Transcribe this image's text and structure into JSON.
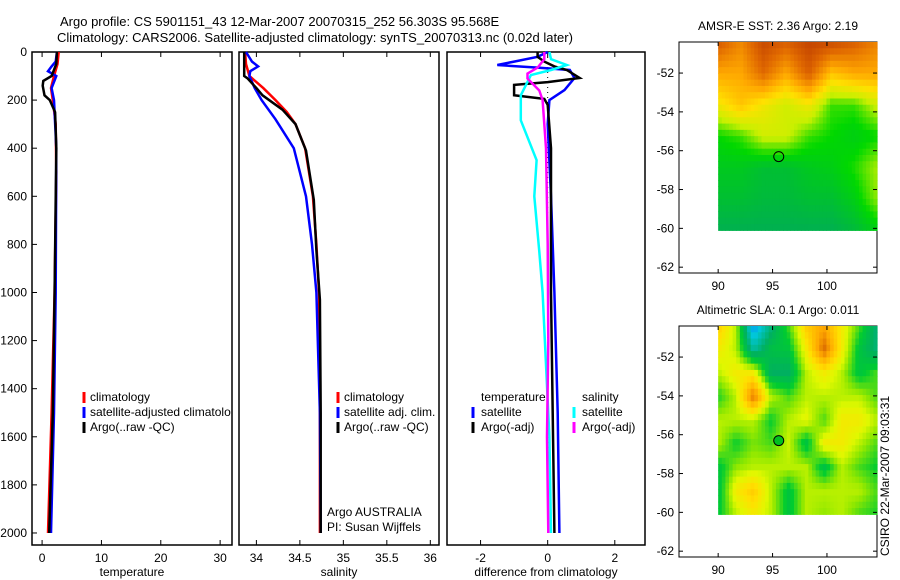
{
  "figure": {
    "title_line1": "Argo profile: CS 5901151_43 12-Mar-2007 20070315_252 56.303S 95.568E",
    "title_line2": "Climatology: CARS2006. Satellite-adjusted climatology: synTS_20070313.nc (0.02d later)",
    "footer_vertical": "CSIRO 22-Mar-2007 09:03:31",
    "credit_line1": "Argo AUSTRALIA",
    "credit_line2": "PI: Susan Wijffels"
  },
  "colors": {
    "red": "#ff0000",
    "blue": "#0000ff",
    "black": "#000000",
    "cyan": "#00ffff",
    "magenta": "#ff00ff"
  },
  "chart_data": [
    {
      "type": "line",
      "id": "temperature",
      "xlabel": "temperature",
      "xlim": [
        -1.7,
        32
      ],
      "ylim": [
        0,
        2050
      ],
      "y_reversed": true,
      "xticks": [
        0,
        10,
        20,
        30
      ],
      "xtick_labels": [
        "0",
        "10",
        "20",
        "30"
      ],
      "yticks": [
        0,
        200,
        400,
        600,
        800,
        1000,
        1200,
        1400,
        1600,
        1800,
        2000
      ],
      "ytick_labels": [
        "0",
        "200",
        "400",
        "600",
        "800",
        "1000",
        "1200",
        "1400",
        "1600",
        "1800",
        "2000"
      ],
      "legend": [
        "climatology",
        "satellite-adjusted climatolo"
      ],
      "legend_items": [
        {
          "label": "climatology",
          "color": "#ff0000"
        },
        {
          "label": "satellite-adjusted climatolo",
          "color": "#0000ff"
        },
        {
          "label": "Argo(..raw -QC)",
          "color": "#000000"
        }
      ],
      "series": [
        {
          "name": "climatology",
          "color": "#ff0000",
          "depth": [
            0,
            50,
            100,
            150,
            200,
            300,
            500,
            1000,
            1500,
            2000
          ],
          "values": [
            2.8,
            2.6,
            2.0,
            1.5,
            1.8,
            2.3,
            2.4,
            2.1,
            1.6,
            1.0
          ]
        },
        {
          "name": "satellite-adjusted climatology",
          "color": "#0000ff",
          "depth": [
            0,
            40,
            60,
            80,
            100,
            150,
            200,
            400,
            1000,
            1500,
            2000
          ],
          "values": [
            2.5,
            2.3,
            1.6,
            1.0,
            2.4,
            1.6,
            2.0,
            2.4,
            2.3,
            2.0,
            1.5
          ]
        },
        {
          "name": "Argo(..raw -QC)",
          "color": "#000000",
          "depth": [
            0,
            50,
            100,
            120,
            140,
            180,
            200,
            250,
            400,
            1000,
            1500,
            2000
          ],
          "values": [
            2.5,
            2.4,
            1.6,
            0.2,
            0.1,
            0.4,
            1.3,
            2.2,
            2.4,
            2.1,
            1.8,
            1.2
          ]
        }
      ]
    },
    {
      "type": "line",
      "id": "salinity",
      "xlabel": "salinity",
      "xlim": [
        33.8,
        36.1
      ],
      "ylim": [
        0,
        2050
      ],
      "y_reversed": true,
      "xticks": [
        34,
        34.5,
        35,
        35.5,
        36
      ],
      "xtick_labels": [
        "34",
        "34.5",
        "35",
        "35.5",
        "36"
      ],
      "legend_items": [
        {
          "label": "climatology",
          "color": "#ff0000"
        },
        {
          "label": "satellite adj. clim.",
          "color": "#0000ff"
        },
        {
          "label": "Argo(..raw -QC)",
          "color": "#000000"
        }
      ],
      "series": [
        {
          "name": "climatology",
          "color": "#ff0000",
          "depth": [
            0,
            50,
            100,
            150,
            200,
            250,
            300,
            400,
            600,
            800,
            1000,
            1500,
            2000
          ],
          "values": [
            33.87,
            33.88,
            33.92,
            34.08,
            34.22,
            34.35,
            34.45,
            34.56,
            34.65,
            34.69,
            34.72,
            34.73,
            34.73
          ]
        },
        {
          "name": "satellite adj. clim.",
          "color": "#0000ff",
          "depth": [
            0,
            40,
            60,
            80,
            100,
            150,
            200,
            280,
            400,
            600,
            800,
            1000,
            1500,
            2000
          ],
          "values": [
            33.88,
            33.95,
            34.02,
            33.93,
            33.92,
            33.98,
            34.06,
            34.22,
            34.43,
            34.57,
            34.64,
            34.69,
            34.73,
            34.74
          ]
        },
        {
          "name": "Argo(..raw -QC)",
          "color": "#000000",
          "depth": [
            0,
            60,
            100,
            110,
            150,
            180,
            240,
            300,
            410,
            615,
            825,
            1030,
            1500,
            2000
          ],
          "values": [
            33.86,
            33.86,
            33.86,
            33.9,
            34.0,
            34.07,
            34.3,
            34.45,
            34.57,
            34.66,
            34.69,
            34.73,
            34.74,
            34.74
          ]
        }
      ]
    },
    {
      "type": "line",
      "id": "difference",
      "xlabel": "difference from climatology",
      "xlim": [
        -3.0,
        2.9
      ],
      "ylim": [
        0,
        2050
      ],
      "y_reversed": true,
      "xticks": [
        -2,
        0,
        2
      ],
      "xtick_labels": [
        "-2",
        "0",
        "2"
      ],
      "legend_headers": [
        "temperature",
        "salinity"
      ],
      "legend_items": [
        {
          "label": "satellite",
          "color": "#0000ff",
          "group": "temperature"
        },
        {
          "label": "Argo(-adj)",
          "color": "#000000",
          "group": "temperature"
        },
        {
          "label": "satellite",
          "color": "#00ffff",
          "group": "salinity"
        },
        {
          "label": "Argo(-adj)",
          "color": "#ff00ff",
          "group": "salinity"
        }
      ],
      "series": [
        {
          "name": "temperature satellite",
          "color": "#0000ff",
          "depth": [
            0,
            20,
            40,
            54,
            65,
            75,
            108,
            158,
            200,
            300,
            600,
            1000,
            1500,
            2000
          ],
          "values": [
            0.0,
            -0.3,
            -1.0,
            -1.5,
            -0.3,
            0.66,
            0.8,
            0.5,
            0.05,
            0.0,
            0.1,
            0.2,
            0.3,
            0.35
          ]
        },
        {
          "name": "temperature Argo(-adj)",
          "color": "#000000",
          "depth": [
            0,
            20,
            40,
            60,
            75,
            108,
            125,
            137,
            180,
            195,
            220,
            400,
            1000,
            1500,
            2000
          ],
          "values": [
            -0.3,
            -0.3,
            -0.1,
            0.2,
            0.57,
            0.95,
            0.0,
            -1.0,
            -1.0,
            -0.1,
            0.0,
            0.1,
            0.1,
            0.15,
            0.2
          ]
        },
        {
          "name": "salinity satellite",
          "color": "#00ffff",
          "depth": [
            0,
            30,
            54,
            75,
            96,
            180,
            284,
            450,
            600,
            830,
            1000,
            1300,
            1600,
            2000
          ],
          "values": [
            0.05,
            0.1,
            0.57,
            0.1,
            -0.5,
            -0.8,
            -0.8,
            -0.33,
            -0.4,
            -0.25,
            -0.15,
            -0.05,
            0.05,
            0.1
          ]
        },
        {
          "name": "salinity Argo(-adj)",
          "color": "#ff00ff",
          "depth": [
            0,
            30,
            65,
            90,
            110,
            160,
            200,
            400,
            800,
            1200,
            1600,
            2000
          ],
          "values": [
            -0.1,
            -0.1,
            -0.3,
            -0.6,
            -0.6,
            -0.25,
            -0.15,
            -0.05,
            0.0,
            0.02,
            -0.02,
            0.02
          ]
        }
      ]
    },
    {
      "type": "heatmap",
      "id": "sst-map",
      "title": "AMSR-E SST: 2.36 Argo: 2.19",
      "xlim": [
        86.4,
        104.6
      ],
      "ylim": [
        -62.3,
        -50.4
      ],
      "xticks": [
        90,
        95,
        100
      ],
      "xtick_labels": [
        "90",
        "95",
        "100"
      ],
      "yticks": [
        -52,
        -54,
        -56,
        -58,
        -60,
        -62
      ],
      "ytick_labels": [
        "-52",
        "-54",
        "-56",
        "-58",
        "-60",
        "-62"
      ],
      "data_lon_range": [
        90,
        104.6
      ],
      "data_lat_range": [
        -60.1,
        -50.4
      ],
      "float_position": {
        "lon": 95.568,
        "lat": -56.303
      },
      "colorscale": [
        [
          2.0,
          "#00b050"
        ],
        [
          2.8,
          "#00d800"
        ],
        [
          3.5,
          "#c8f000"
        ],
        [
          4.2,
          "#ffe000"
        ],
        [
          5.0,
          "#ffa800"
        ],
        [
          6.0,
          "#e06800"
        ],
        [
          6.8,
          "#c04000"
        ]
      ],
      "grid_rows_top_to_bottom": [
        [
          6.3,
          5.5,
          6.6,
          6.2,
          6.7,
          6.6,
          6.2,
          5.6
        ],
        [
          5.0,
          5.0,
          6.0,
          5.0,
          6.2,
          4.6,
          5.0,
          5.0
        ],
        [
          4.0,
          4.6,
          4.0,
          3.6,
          4.0,
          3.0,
          3.0,
          3.6
        ],
        [
          2.8,
          3.0,
          3.6,
          3.6,
          3.0,
          2.8,
          2.6,
          2.8
        ],
        [
          2.5,
          2.5,
          2.3,
          2.3,
          2.5,
          2.6,
          2.9,
          3.4
        ],
        [
          2.3,
          2.3,
          2.2,
          2.2,
          2.3,
          2.3,
          2.6,
          3.3
        ],
        [
          2.0,
          2.0,
          2.0,
          2.0,
          2.0,
          2.0,
          2.2,
          2.6
        ]
      ]
    },
    {
      "type": "heatmap",
      "id": "sla-map",
      "title": "Altimetric SLA: 0.1 Argo: 0.011",
      "xlim": [
        86.4,
        104.6
      ],
      "ylim": [
        -62.3,
        -50.4
      ],
      "xticks": [
        90,
        95,
        100
      ],
      "xtick_labels": [
        "90",
        "95",
        "100"
      ],
      "yticks": [
        -52,
        -54,
        -56,
        -58,
        -60,
        -62
      ],
      "ytick_labels": [
        "-52",
        "-54",
        "-56",
        "-58",
        "-60",
        "-62"
      ],
      "data_lon_range": [
        90,
        104.6
      ],
      "data_lat_range": [
        -60.1,
        -50.4
      ],
      "float_position": {
        "lon": 95.568,
        "lat": -56.303
      },
      "colorscale": [
        [
          -0.3,
          "#0050ff"
        ],
        [
          -0.2,
          "#00c8e0"
        ],
        [
          -0.1,
          "#00b060"
        ],
        [
          -0.03,
          "#00cc30"
        ],
        [
          0.03,
          "#90e800"
        ],
        [
          0.07,
          "#e0f800"
        ],
        [
          0.12,
          "#ffe000"
        ],
        [
          0.2,
          "#ffa800"
        ],
        [
          0.3,
          "#c04000"
        ]
      ],
      "grid_rows_top_to_bottom": [
        [
          0.15,
          0.05,
          -0.25,
          -0.12,
          0.0,
          0.15,
          0.2,
          0.1,
          0.0,
          -0.12
        ],
        [
          0.1,
          0.05,
          -0.15,
          -0.06,
          -0.05,
          0.1,
          0.26,
          0.1,
          -0.05,
          -0.12
        ],
        [
          0.05,
          0.1,
          0.1,
          -0.1,
          -0.1,
          0.05,
          0.1,
          0.05,
          -0.05,
          0.0
        ],
        [
          -0.02,
          0.05,
          0.25,
          0.05,
          0.0,
          0.05,
          0.05,
          0.05,
          0.05,
          0.0
        ],
        [
          0.05,
          0.05,
          0.05,
          -0.03,
          0.05,
          0.08,
          0.0,
          0.1,
          0.1,
          0.05
        ],
        [
          0.05,
          -0.03,
          0.02,
          0.0,
          0.06,
          -0.06,
          0.1,
          0.1,
          0.05,
          0.0
        ],
        [
          -0.05,
          0.03,
          0.05,
          0.05,
          0.05,
          0.05,
          -0.06,
          0.05,
          0.0,
          -0.03
        ],
        [
          -0.06,
          0.1,
          0.15,
          0.05,
          -0.05,
          0.05,
          0.05,
          0.05,
          0.05,
          0.0
        ],
        [
          -0.04,
          0.05,
          0.1,
          0.05,
          -0.05,
          0.05,
          0.03,
          0.05,
          0.0,
          -0.02
        ]
      ]
    }
  ]
}
